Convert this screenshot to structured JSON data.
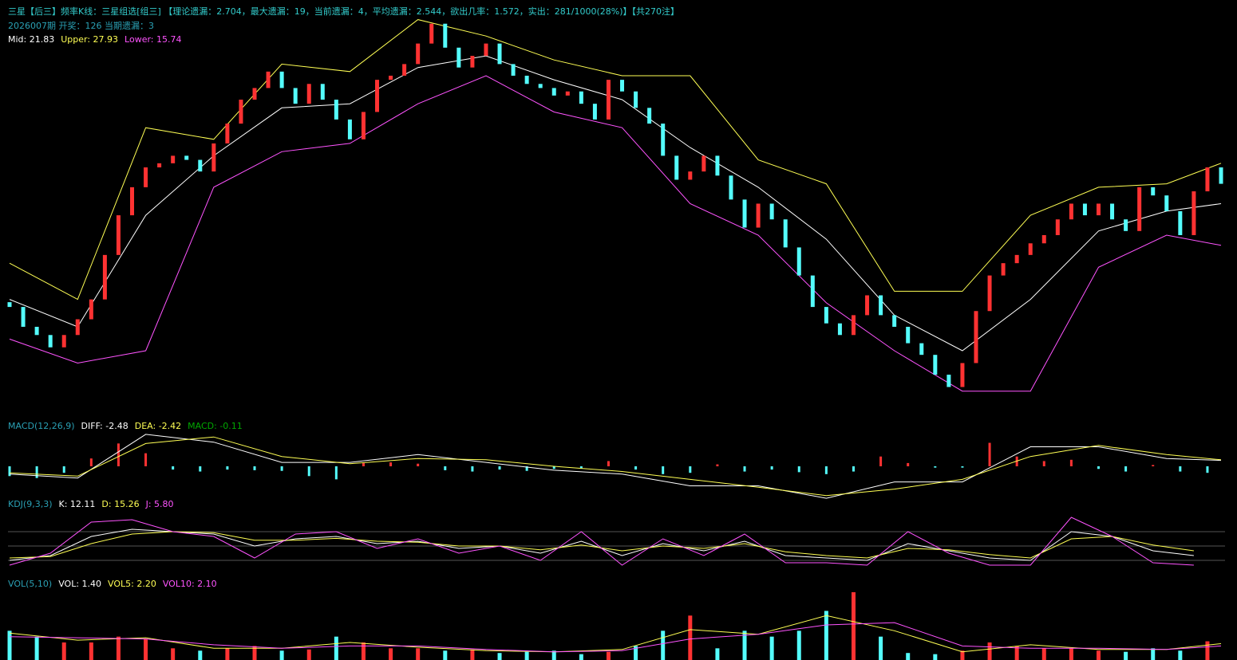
{
  "chart_data": [
    {
      "type": "candlestick",
      "title": "三星【后三】频率K线：三星组选[组三] 【理论遗漏：2.704，最大遗漏：19，当前遗漏：4，平均遗漏：2.544，欲出几率：1.572，实出：281/1000(28%)】【共270注】",
      "subtitle": "2026007期 开奖：126 当期遗漏：3",
      "up_color": "#ff3232",
      "down_color": "#54fcfc",
      "ylim": [
        -10,
        50
      ],
      "open": 7.0,
      "values": [
        6.3,
        3.4,
        2.2,
        0.4,
        2.2,
        4.5,
        7.4,
        13.9,
        19.7,
        23.8,
        26.7,
        27.3,
        28.4,
        27.8,
        26.1,
        30.2,
        33.1,
        36.6,
        38.3,
        40.7,
        38.3,
        36.0,
        38.9,
        36.6,
        33.7,
        30.8,
        34.8,
        39.5,
        40.1,
        41.8,
        44.8,
        47.7,
        44.2,
        41.3,
        43.0,
        44.8,
        41.8,
        40.1,
        38.9,
        38.3,
        37.2,
        37.8,
        36.0,
        33.7,
        39.5,
        37.8,
        35.4,
        33.1,
        28.4,
        24.9,
        26.1,
        28.4,
        25.5,
        22.0,
        17.9,
        21.4,
        19.1,
        15.0,
        10.9,
        6.3,
        3.9,
        2.2,
        5.1,
        8.0,
        5.1,
        3.4,
        1.0,
        -0.7,
        -3.6,
        -5.4,
        -1.9,
        5.7,
        10.9,
        12.7,
        13.9,
        15.6,
        16.8,
        19.1,
        21.4,
        19.7,
        21.4,
        19.1,
        17.4,
        23.8,
        22.6,
        20.3,
        16.8,
        23.2,
        26.7,
        24.3
      ],
      "series": [
        {
          "label": "Mid: 21.83",
          "color": "#ffffff",
          "x": [
            0,
            5,
            10,
            15,
            20,
            25,
            30,
            35,
            40,
            45,
            50,
            55,
            60,
            65,
            70,
            75,
            80,
            85,
            89
          ],
          "values": [
            7.4,
            3.4,
            19.7,
            28.4,
            35.4,
            36.0,
            41.3,
            43.0,
            39.5,
            36.6,
            29.6,
            23.8,
            16.2,
            5.1,
            -0.1,
            7.4,
            17.4,
            20.3,
            21.4
          ]
        },
        {
          "label": "Upper: 27.93",
          "color": "#ffff54",
          "x": [
            0,
            5,
            10,
            15,
            20,
            25,
            30,
            35,
            40,
            45,
            50,
            55,
            60,
            65,
            70,
            75,
            80,
            85,
            89
          ],
          "values": [
            12.7,
            7.4,
            32.5,
            30.8,
            41.8,
            40.7,
            48.3,
            45.9,
            42.4,
            40.1,
            40.1,
            27.8,
            24.3,
            8.6,
            8.6,
            19.7,
            23.8,
            24.3,
            27.3
          ]
        },
        {
          "label": "Lower: 15.74",
          "color": "#ff54ff",
          "x": [
            0,
            5,
            10,
            15,
            20,
            25,
            30,
            35,
            40,
            45,
            50,
            55,
            60,
            65,
            70,
            75,
            80,
            85,
            89
          ],
          "values": [
            1.6,
            -1.9,
            -0.1,
            23.8,
            29.0,
            30.2,
            36.0,
            40.1,
            34.8,
            32.5,
            21.4,
            16.8,
            6.9,
            -0.1,
            -6.0,
            -6.0,
            12.1,
            16.8,
            15.3
          ]
        }
      ]
    },
    {
      "type": "macd",
      "label": "MACD(12,26,9)",
      "histogram_label": "MACD: -0.11",
      "histogram_label_color": "#00a800",
      "up_color": "#ff3232",
      "down_color": "#54fcfc",
      "ylim": [
        -5.5,
        5.5
      ],
      "x": [
        0,
        2,
        4,
        6,
        8,
        10,
        12,
        14,
        16,
        18,
        20,
        22,
        24,
        26,
        28,
        30,
        32,
        34,
        36,
        38,
        40,
        42,
        44,
        46,
        48,
        50,
        52,
        54,
        56,
        58,
        60,
        62,
        64,
        66,
        68,
        70,
        72,
        74,
        76,
        78,
        80,
        82,
        84,
        86,
        88
      ],
      "values": [
        -1.5,
        -1.8,
        -1.0,
        1.2,
        3.5,
        2.0,
        -0.5,
        -0.8,
        -0.5,
        -0.6,
        -0.7,
        -1.5,
        -2.0,
        0.5,
        0.6,
        0.4,
        -0.6,
        -0.8,
        -0.5,
        -0.7,
        -0.4,
        -0.3,
        0.8,
        -0.5,
        -1.2,
        -1.0,
        0.3,
        -0.8,
        -0.5,
        -0.9,
        -1.2,
        -0.8,
        1.5,
        0.5,
        -0.2,
        -0.2,
        3.6,
        1.5,
        0.8,
        1.0,
        -0.4,
        -0.8,
        0.2,
        -0.8,
        -1.0
      ],
      "series": [
        {
          "label": "DIFF: -2.48",
          "color": "#ffffff",
          "x": [
            0,
            5,
            10,
            15,
            20,
            25,
            30,
            35,
            40,
            45,
            50,
            55,
            60,
            65,
            70,
            75,
            80,
            85,
            89
          ],
          "values": [
            -1.2,
            -1.8,
            4.9,
            3.7,
            0.6,
            0.6,
            1.8,
            0.6,
            -0.6,
            -1.2,
            -3.0,
            -3.0,
            -4.9,
            -2.4,
            -2.4,
            3.0,
            3.0,
            1.2,
            0.9
          ]
        },
        {
          "label": "DEA: -2.42",
          "color": "#ffff54",
          "x": [
            0,
            5,
            10,
            15,
            20,
            25,
            30,
            35,
            40,
            45,
            50,
            55,
            60,
            65,
            70,
            75,
            80,
            85,
            89
          ],
          "values": [
            -1.0,
            -1.5,
            3.5,
            4.5,
            1.5,
            0.4,
            1.2,
            1.0,
            0,
            -0.8,
            -2.0,
            -3.2,
            -4.5,
            -3.5,
            -2.0,
            1.5,
            3.2,
            1.8,
            1.0
          ]
        }
      ]
    },
    {
      "type": "line",
      "label": "KDJ(9,3,3)",
      "ylim": [
        -25,
        120
      ],
      "hlines": [
        20,
        50,
        80
      ],
      "hline_color": "#555555",
      "series": [
        {
          "label": "K: 12.11",
          "color": "#ffffff",
          "x": [
            0,
            3,
            6,
            9,
            12,
            15,
            18,
            21,
            24,
            27,
            30,
            33,
            36,
            39,
            42,
            45,
            48,
            51,
            54,
            57,
            60,
            63,
            66,
            69,
            72,
            75,
            78,
            81,
            84,
            87
          ],
          "values": [
            20,
            30,
            70,
            85,
            80,
            75,
            50,
            65,
            70,
            55,
            60,
            45,
            50,
            35,
            60,
            30,
            55,
            40,
            60,
            30,
            25,
            20,
            55,
            40,
            25,
            20,
            80,
            70,
            40,
            30
          ]
        },
        {
          "label": "D: 15.26",
          "color": "#ffff54",
          "x": [
            0,
            3,
            6,
            9,
            12,
            15,
            18,
            21,
            24,
            27,
            30,
            33,
            36,
            39,
            42,
            45,
            48,
            51,
            54,
            57,
            60,
            63,
            66,
            69,
            72,
            75,
            78,
            81,
            84,
            87
          ],
          "values": [
            25,
            28,
            55,
            75,
            80,
            78,
            62,
            62,
            66,
            60,
            58,
            50,
            50,
            42,
            52,
            40,
            50,
            45,
            55,
            38,
            30,
            25,
            45,
            42,
            32,
            25,
            65,
            70,
            52,
            40
          ]
        },
        {
          "label": "J: 5.80",
          "color": "#ff54ff",
          "x": [
            0,
            3,
            6,
            9,
            12,
            15,
            18,
            21,
            24,
            27,
            30,
            33,
            36,
            39,
            42,
            45,
            48,
            51,
            54,
            57,
            60,
            63,
            66,
            69,
            72,
            75,
            78,
            81,
            84,
            87
          ],
          "values": [
            10,
            35,
            100,
            105,
            80,
            70,
            25,
            75,
            80,
            45,
            65,
            35,
            50,
            20,
            80,
            10,
            65,
            30,
            75,
            15,
            15,
            10,
            80,
            35,
            10,
            10,
            110,
            70,
            15,
            10
          ]
        }
      ]
    },
    {
      "type": "volume",
      "label": "VOL(5,10)",
      "bar_label": "VOL: 1.40",
      "ylim": [
        0,
        6
      ],
      "x": [
        0,
        2,
        4,
        6,
        8,
        10,
        12,
        14,
        16,
        18,
        20,
        22,
        24,
        26,
        28,
        30,
        32,
        34,
        36,
        38,
        40,
        42,
        44,
        46,
        48,
        50,
        52,
        54,
        56,
        58,
        60,
        62,
        64,
        66,
        68,
        70,
        72,
        74,
        76,
        78,
        80,
        82,
        84,
        86,
        88
      ],
      "values": [
        2.5,
        2.0,
        1.5,
        1.5,
        2.0,
        1.8,
        1.0,
        0.8,
        1.0,
        1.2,
        0.8,
        0.9,
        2.0,
        1.5,
        1.0,
        1.0,
        0.8,
        0.9,
        0.6,
        0.7,
        0.8,
        0.5,
        0.7,
        1.2,
        2.5,
        3.8,
        1.0,
        2.5,
        2.0,
        2.5,
        4.2,
        5.8,
        2.0,
        0.6,
        0.5,
        0.8,
        1.5,
        1.2,
        1.0,
        1.0,
        0.8,
        0.7,
        1.0,
        0.8,
        1.6
      ],
      "series": [
        {
          "label": "VOL5: 2.20",
          "color": "#ffff54",
          "x": [
            0,
            5,
            10,
            15,
            20,
            25,
            30,
            35,
            40,
            45,
            50,
            55,
            60,
            65,
            70,
            75,
            80,
            85,
            89
          ],
          "values": [
            2.3,
            1.7,
            1.9,
            1.0,
            1.0,
            1.5,
            1.1,
            0.8,
            0.7,
            0.9,
            2.6,
            2.2,
            3.8,
            2.5,
            0.7,
            1.3,
            0.9,
            0.9,
            1.4
          ]
        },
        {
          "label": "VOL10: 2.10",
          "color": "#ff54ff",
          "x": [
            0,
            5,
            10,
            15,
            20,
            25,
            30,
            35,
            40,
            45,
            50,
            55,
            60,
            65,
            70,
            75,
            80,
            85,
            89
          ],
          "values": [
            2.0,
            1.9,
            1.8,
            1.3,
            1.0,
            1.2,
            1.2,
            0.9,
            0.7,
            0.8,
            1.8,
            2.2,
            3.0,
            3.2,
            1.2,
            1.0,
            1.0,
            0.9,
            1.2
          ]
        }
      ]
    }
  ]
}
